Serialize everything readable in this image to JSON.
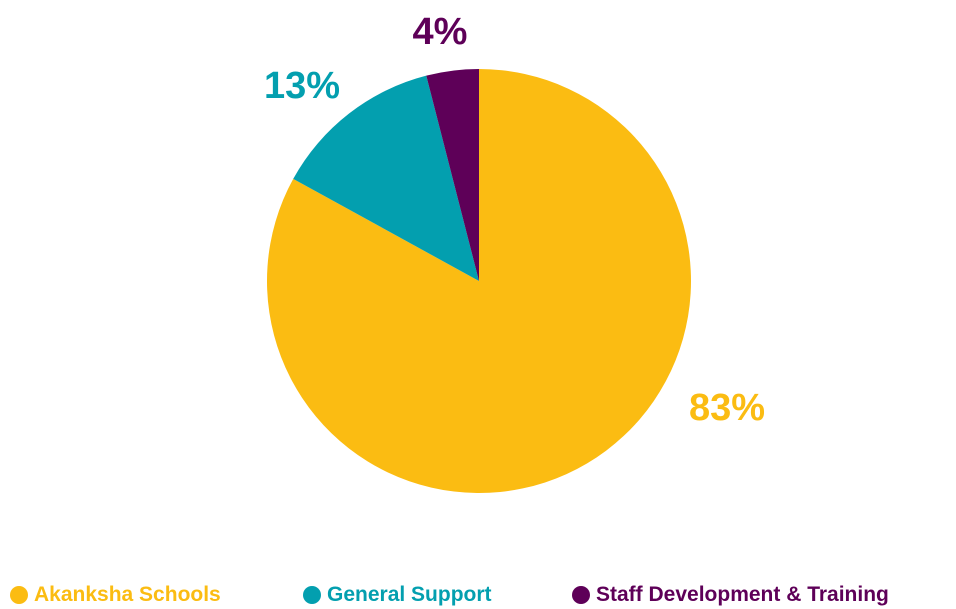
{
  "chart_data": {
    "type": "pie",
    "title": "",
    "slices": [
      {
        "name": "Akanksha Schools",
        "value": 83,
        "label": "83%",
        "color": "#FBBC12"
      },
      {
        "name": "General Support",
        "value": 13,
        "label": "13%",
        "color": "#039FAF"
      },
      {
        "name": "Staff Development & Training",
        "value": 4,
        "label": "4%",
        "color": "#5E0058"
      }
    ],
    "legend_position": "bottom"
  }
}
